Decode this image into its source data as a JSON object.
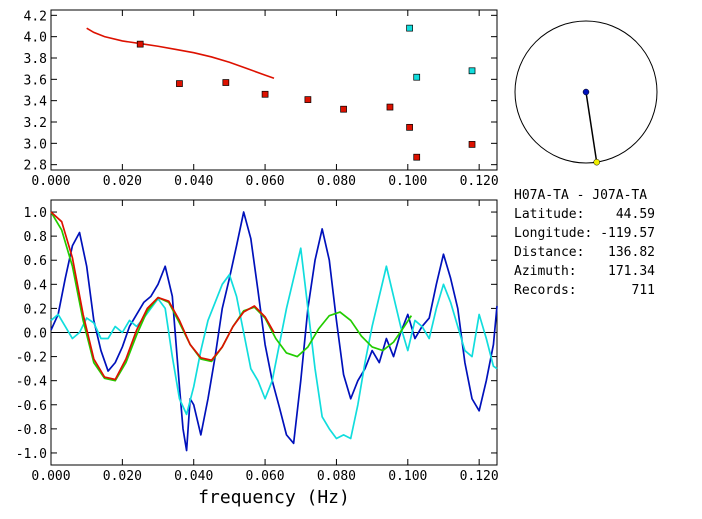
{
  "station_info": {
    "title": "H07A-TA  - J07A-TA",
    "rows": [
      {
        "label": "Latitude:",
        "value": "44.59"
      },
      {
        "label": "Longitude:",
        "value": "-119.57"
      },
      {
        "label": "Distance:",
        "value": "136.82"
      },
      {
        "label": "Azimuth:",
        "value": "171.34"
      },
      {
        "label": "Records:",
        "value": "711"
      }
    ]
  },
  "colors": {
    "red": "#dd1100",
    "green": "#22cc00",
    "blue": "#0011bb",
    "cyan": "#11dddd",
    "axis": "#000000"
  },
  "chart_data": [
    {
      "type": "scatter",
      "xlim": [
        0.0,
        0.125
      ],
      "ylim": [
        2.75,
        4.25
      ],
      "xticks": [
        "0.000",
        "0.020",
        "0.040",
        "0.060",
        "0.080",
        "0.100",
        "0.120"
      ],
      "xtick_values": [
        0.0,
        0.02,
        0.04,
        0.06,
        0.08,
        0.1,
        0.12
      ],
      "yticks": [
        "2.8",
        "3.0",
        "3.2",
        "3.4",
        "3.6",
        "3.8",
        "4.0",
        "4.2"
      ],
      "ytick_values": [
        2.8,
        3.0,
        3.2,
        3.4,
        3.6,
        3.8,
        4.0,
        4.2
      ],
      "curve": {
        "color": "red",
        "x": [
          0.01,
          0.012,
          0.015,
          0.02,
          0.025,
          0.03,
          0.035,
          0.04,
          0.045,
          0.05,
          0.055,
          0.06,
          0.0625
        ],
        "y": [
          4.08,
          4.04,
          4.0,
          3.96,
          3.935,
          3.91,
          3.88,
          3.85,
          3.81,
          3.76,
          3.7,
          3.64,
          3.61
        ]
      },
      "points_red": {
        "x": [
          0.025,
          0.036,
          0.049,
          0.06,
          0.072,
          0.082,
          0.095,
          0.1005,
          0.1025,
          0.118
        ],
        "y": [
          3.93,
          3.56,
          3.57,
          3.46,
          3.41,
          3.32,
          3.34,
          3.15,
          2.87,
          2.99
        ]
      },
      "points_cyan": {
        "x": [
          0.1005,
          0.1025,
          0.118
        ],
        "y": [
          4.08,
          3.62,
          3.68
        ]
      }
    },
    {
      "type": "line",
      "xlabel": "frequency (Hz)",
      "xlim": [
        0.0,
        0.125
      ],
      "ylim": [
        -1.1,
        1.1
      ],
      "xticks": [
        "0.000",
        "0.020",
        "0.040",
        "0.060",
        "0.080",
        "0.100",
        "0.120"
      ],
      "xtick_values": [
        0.0,
        0.02,
        0.04,
        0.06,
        0.08,
        0.1,
        0.12
      ],
      "yticks": [
        "1.0",
        "0.8",
        "0.6",
        "0.4",
        "0.2",
        "0.0",
        "-0.2",
        "-0.4",
        "-0.6",
        "-0.8",
        "-1.0"
      ],
      "ytick_values": [
        1.0,
        0.8,
        0.6,
        0.4,
        0.2,
        0.0,
        -0.2,
        -0.4,
        -0.6,
        -0.8,
        -1.0
      ],
      "series": [
        {
          "color": "blue",
          "x": [
            0.0,
            0.002,
            0.004,
            0.006,
            0.008,
            0.01,
            0.012,
            0.014,
            0.016,
            0.018,
            0.02,
            0.022,
            0.024,
            0.026,
            0.028,
            0.03,
            0.032,
            0.034,
            0.036,
            0.037,
            0.038,
            0.039,
            0.04,
            0.042,
            0.044,
            0.046,
            0.048,
            0.05,
            0.052,
            0.054,
            0.056,
            0.058,
            0.06,
            0.062,
            0.064,
            0.066,
            0.068,
            0.07,
            0.072,
            0.074,
            0.076,
            0.078,
            0.08,
            0.082,
            0.084,
            0.086,
            0.088,
            0.09,
            0.092,
            0.094,
            0.096,
            0.098,
            0.1,
            0.102,
            0.104,
            0.106,
            0.108,
            0.11,
            0.112,
            0.114,
            0.116,
            0.118,
            0.12,
            0.122,
            0.124,
            0.125
          ],
          "y": [
            0.02,
            0.15,
            0.45,
            0.72,
            0.83,
            0.55,
            0.1,
            -0.15,
            -0.32,
            -0.25,
            -0.12,
            0.05,
            0.15,
            0.25,
            0.3,
            0.4,
            0.55,
            0.3,
            -0.45,
            -0.8,
            -0.98,
            -0.55,
            -0.6,
            -0.85,
            -0.55,
            -0.2,
            0.2,
            0.45,
            0.72,
            1.0,
            0.78,
            0.35,
            -0.1,
            -0.4,
            -0.62,
            -0.85,
            -0.92,
            -0.4,
            0.2,
            0.6,
            0.86,
            0.6,
            0.1,
            -0.35,
            -0.55,
            -0.4,
            -0.3,
            -0.15,
            -0.25,
            -0.05,
            -0.2,
            0.0,
            0.15,
            -0.05,
            0.05,
            0.12,
            0.4,
            0.65,
            0.45,
            0.2,
            -0.25,
            -0.55,
            -0.65,
            -0.4,
            -0.1,
            0.22
          ]
        },
        {
          "color": "cyan",
          "x": [
            0.0,
            0.002,
            0.004,
            0.006,
            0.008,
            0.01,
            0.012,
            0.014,
            0.016,
            0.018,
            0.02,
            0.022,
            0.024,
            0.026,
            0.028,
            0.03,
            0.032,
            0.034,
            0.036,
            0.038,
            0.04,
            0.042,
            0.044,
            0.046,
            0.048,
            0.05,
            0.052,
            0.054,
            0.056,
            0.058,
            0.06,
            0.062,
            0.064,
            0.066,
            0.068,
            0.07,
            0.072,
            0.074,
            0.076,
            0.078,
            0.08,
            0.082,
            0.084,
            0.086,
            0.088,
            0.09,
            0.092,
            0.094,
            0.096,
            0.098,
            0.1,
            0.102,
            0.104,
            0.106,
            0.108,
            0.11,
            0.112,
            0.114,
            0.116,
            0.118,
            0.12,
            0.122,
            0.124,
            0.125
          ],
          "y": [
            0.1,
            0.15,
            0.05,
            -0.05,
            0.0,
            0.12,
            0.08,
            -0.05,
            -0.05,
            0.05,
            0.0,
            0.1,
            0.05,
            0.12,
            0.2,
            0.28,
            0.2,
            -0.2,
            -0.55,
            -0.68,
            -0.45,
            -0.15,
            0.1,
            0.25,
            0.4,
            0.48,
            0.3,
            0.0,
            -0.3,
            -0.4,
            -0.55,
            -0.4,
            -0.1,
            0.2,
            0.45,
            0.7,
            0.2,
            -0.3,
            -0.7,
            -0.8,
            -0.88,
            -0.85,
            -0.88,
            -0.6,
            -0.25,
            0.05,
            0.3,
            0.55,
            0.3,
            0.05,
            -0.15,
            0.1,
            0.05,
            -0.05,
            0.2,
            0.4,
            0.25,
            0.05,
            -0.15,
            -0.2,
            0.15,
            -0.05,
            -0.28,
            -0.3
          ]
        },
        {
          "color": "green",
          "x": [
            0.0,
            0.003,
            0.006,
            0.009,
            0.012,
            0.015,
            0.018,
            0.021,
            0.024,
            0.027,
            0.03,
            0.033,
            0.036,
            0.039,
            0.042,
            0.045,
            0.048,
            0.051,
            0.054,
            0.057,
            0.06,
            0.063,
            0.066,
            0.069,
            0.072,
            0.075,
            0.078,
            0.081,
            0.084,
            0.087,
            0.09,
            0.093,
            0.096,
            0.099,
            0.101
          ],
          "y": [
            1.0,
            0.85,
            0.55,
            0.1,
            -0.25,
            -0.38,
            -0.4,
            -0.25,
            -0.02,
            0.18,
            0.29,
            0.25,
            0.08,
            -0.1,
            -0.22,
            -0.24,
            -0.12,
            0.05,
            0.18,
            0.21,
            0.12,
            -0.05,
            -0.17,
            -0.2,
            -0.12,
            0.03,
            0.14,
            0.17,
            0.1,
            -0.03,
            -0.12,
            -0.15,
            -0.08,
            0.05,
            0.14
          ]
        },
        {
          "color": "red",
          "x": [
            0.0,
            0.003,
            0.006,
            0.009,
            0.012,
            0.015,
            0.018,
            0.021,
            0.024,
            0.027,
            0.03,
            0.033,
            0.036,
            0.039,
            0.042,
            0.045,
            0.048,
            0.051,
            0.054,
            0.057,
            0.06,
            0.0625
          ],
          "y": [
            1.0,
            0.92,
            0.62,
            0.15,
            -0.22,
            -0.37,
            -0.39,
            -0.22,
            0.02,
            0.2,
            0.29,
            0.26,
            0.1,
            -0.1,
            -0.21,
            -0.23,
            -0.12,
            0.05,
            0.17,
            0.22,
            0.13,
            0.0
          ]
        }
      ]
    },
    {
      "type": "scatter",
      "chart": "polar-azimuth",
      "azimuth_deg": 171.34
    }
  ]
}
